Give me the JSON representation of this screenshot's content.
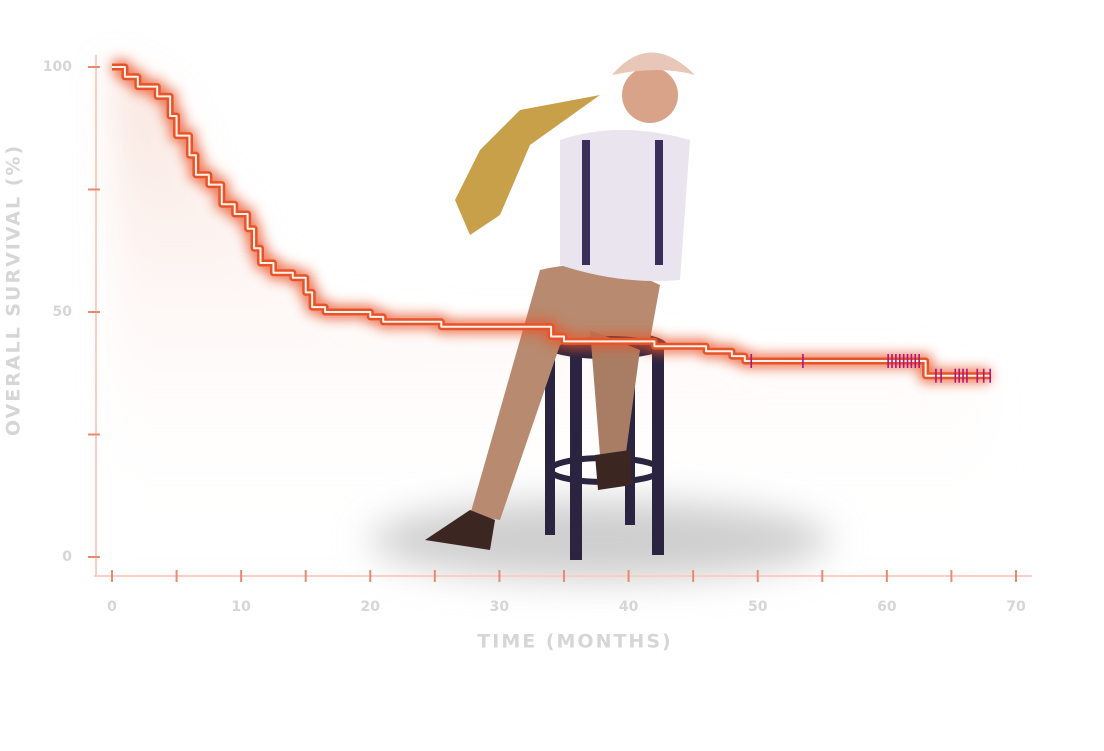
{
  "chart_data": {
    "type": "line",
    "step": "post",
    "xlabel": "TIME (MONTHS)",
    "ylabel": "OVERALL SURVIVAL (%)",
    "x": [
      0,
      1,
      1,
      2,
      2,
      3.5,
      3.5,
      4.5,
      4.5,
      5,
      5,
      6,
      6,
      6.5,
      6.5,
      7.5,
      7.5,
      8.5,
      8.5,
      9.5,
      9.5,
      10.5,
      10.5,
      11,
      11,
      11.5,
      11.5,
      12.5,
      12.5,
      14,
      14,
      15,
      15,
      15.5,
      15.5,
      16.5,
      16.5,
      20,
      20,
      21,
      21,
      25.5,
      25.5,
      34,
      34,
      35,
      35,
      42,
      42,
      46,
      46,
      48,
      48,
      49,
      49,
      63,
      63,
      68
    ],
    "values": [
      100,
      100,
      98,
      98,
      96,
      96,
      94,
      94,
      90,
      90,
      86,
      86,
      82,
      82,
      78,
      78,
      76,
      76,
      72,
      72,
      70,
      70,
      67,
      67,
      63,
      63,
      60,
      60,
      58,
      58,
      57,
      57,
      54,
      54,
      51,
      51,
      50,
      50,
      49,
      49,
      48,
      48,
      47,
      47,
      45,
      45,
      44,
      44,
      43,
      43,
      42,
      42,
      41,
      41,
      40,
      40,
      37,
      37
    ],
    "color": "#e8542a",
    "censored": {
      "x": [
        49.5,
        53.5,
        60.1,
        60.4,
        60.7,
        61,
        61.3,
        61.6,
        61.9,
        62.2,
        62.5,
        63.8,
        64.2,
        65.3,
        65.6,
        65.9,
        66.2,
        67,
        67.5,
        68
      ],
      "values": [
        40,
        40,
        40,
        40,
        40,
        40,
        40,
        40,
        40,
        40,
        40,
        37,
        37,
        37,
        37,
        37,
        37,
        37,
        37,
        37
      ],
      "color": "#b0157a"
    },
    "xlim": [
      0,
      70
    ],
    "xticks": [
      0,
      10,
      20,
      30,
      40,
      50,
      60,
      70
    ],
    "xminor_ticks": [
      5,
      15,
      25,
      35,
      45,
      55,
      65
    ],
    "ylim": [
      0,
      100
    ],
    "yticks": [
      0,
      50,
      100
    ],
    "yminor_ticks": [
      25,
      75
    ]
  }
}
